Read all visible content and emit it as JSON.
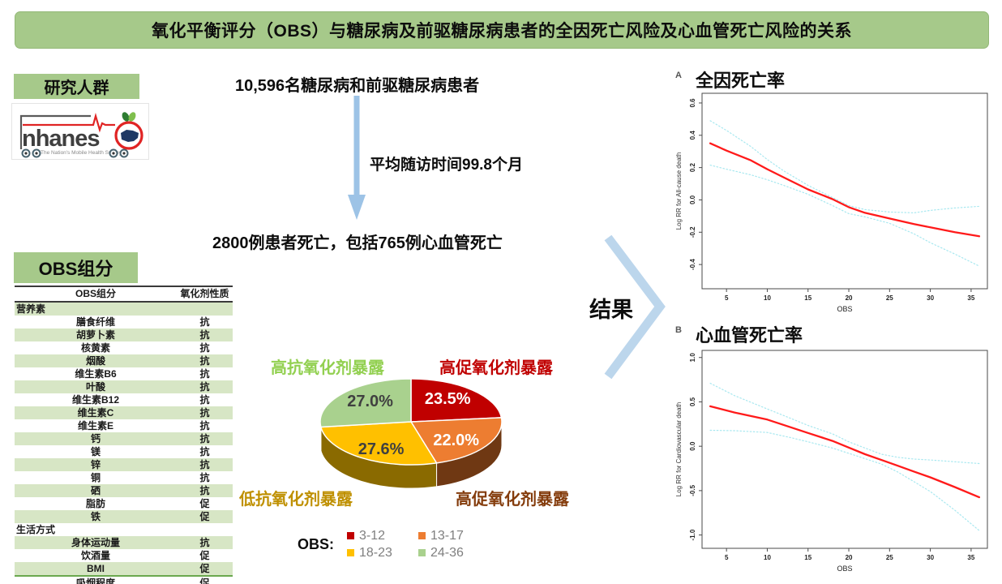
{
  "banner": {
    "title": "氧化平衡评分（OBS）与糖尿病及前驱糖尿病患者的全因死亡风险及心血管死亡风险的关系"
  },
  "colors": {
    "accent_green": "#a6c98a",
    "table_stripe": "#d7e6c5",
    "arrow_blue": "#9dc3e6",
    "chevron_blue": "#bcd6ec",
    "fit_red": "#ff1a1a",
    "ci_cyan": "#a8e8f0"
  },
  "study": {
    "header": "研究人群",
    "logo": {
      "brand": "nhanes",
      "tagline": "The Nation's Mobile Health Survey"
    },
    "population": "10,596名糖尿病和前驱糖尿病患者",
    "follow_up": "平均随访时间99.8个月",
    "outcome": "2800例患者死亡，包括765例心血管死亡",
    "result_label": "结果"
  },
  "obs_table": {
    "header": "OBS组分",
    "columns": [
      "OBS组分",
      "氧化剂性质"
    ],
    "rows": [
      {
        "label": "营养素",
        "value": "",
        "section": true
      },
      {
        "label": "膳食纤维",
        "value": "抗"
      },
      {
        "label": "胡萝卜素",
        "value": "抗"
      },
      {
        "label": "核黄素",
        "value": "抗"
      },
      {
        "label": "烟酸",
        "value": "抗"
      },
      {
        "label": "维生素B6",
        "value": "抗"
      },
      {
        "label": "叶酸",
        "value": "抗"
      },
      {
        "label": "维生素B12",
        "value": "抗"
      },
      {
        "label": "维生素C",
        "value": "抗"
      },
      {
        "label": "维生素E",
        "value": "抗"
      },
      {
        "label": "钙",
        "value": "抗"
      },
      {
        "label": "镁",
        "value": "抗"
      },
      {
        "label": "锌",
        "value": "抗"
      },
      {
        "label": "铜",
        "value": "抗"
      },
      {
        "label": "硒",
        "value": "抗"
      },
      {
        "label": "脂肪",
        "value": "促"
      },
      {
        "label": "铁",
        "value": "促"
      },
      {
        "label": "生活方式",
        "value": "",
        "section": true
      },
      {
        "label": "身体运动量",
        "value": "抗"
      },
      {
        "label": "饮酒量",
        "value": "促"
      },
      {
        "label": "BMI",
        "value": "促"
      },
      {
        "label": "吸烟程度",
        "value": "促"
      }
    ]
  },
  "chart_data": [
    {
      "id": "obs-category-pie",
      "type": "pie",
      "legend_title": "OBS:",
      "slices": [
        {
          "label": "3-12",
          "value": 23.5,
          "color": "#c00000",
          "side_color": "#7c0000",
          "label_color": "#ffffff"
        },
        {
          "label": "13-17",
          "value": 22.0,
          "color": "#ed7d31",
          "side_color": "#6f3813",
          "label_color": "#ffffff"
        },
        {
          "label": "18-23",
          "value": 27.6,
          "color": "#ffc000",
          "side_color": "#8a6a00",
          "label_color": "#404040"
        },
        {
          "label": "24-36",
          "value": 27.0,
          "color": "#a9d18e",
          "side_color": "#6d9b52",
          "label_color": "#404040"
        }
      ],
      "annotations": [
        {
          "text": "高抗氧化剂暴露",
          "color": "#92d050",
          "position": "top-left"
        },
        {
          "text": "高促氧化剂暴露",
          "color": "#c00000",
          "position": "top-right"
        },
        {
          "text": "低抗氧化剂暴露",
          "color": "#bf9000",
          "position": "bottom-left"
        },
        {
          "text": "高促氧化剂暴露",
          "color": "#843c0c",
          "position": "bottom-right"
        }
      ]
    },
    {
      "id": "all-cause-mortality",
      "type": "line",
      "panel": "A",
      "title": "全因死亡率",
      "xlabel": "OBS",
      "ylabel": "Log RR for All-cause death",
      "xlim": [
        2,
        37
      ],
      "ylim": [
        -0.55,
        0.66
      ],
      "xticks": [
        5,
        10,
        15,
        20,
        25,
        30,
        35
      ],
      "yticks": [
        -0.4,
        -0.2,
        0.0,
        0.2,
        0.4,
        0.6
      ],
      "x": [
        3,
        5,
        8,
        10,
        12,
        15,
        18,
        20,
        22,
        25,
        28,
        30,
        33,
        36
      ],
      "series": [
        {
          "name": "estimate",
          "color": "#ff1a1a",
          "style": "solid",
          "values": [
            0.35,
            0.305,
            0.245,
            0.19,
            0.14,
            0.065,
            0.005,
            -0.045,
            -0.08,
            -0.115,
            -0.15,
            -0.17,
            -0.2,
            -0.225
          ]
        },
        {
          "name": "upper-ci",
          "color": "#a8e8f0",
          "style": "dotted",
          "values": [
            0.49,
            0.43,
            0.33,
            0.25,
            0.18,
            0.09,
            0.015,
            -0.035,
            -0.06,
            -0.075,
            -0.08,
            -0.065,
            -0.05,
            -0.04
          ]
        },
        {
          "name": "lower-ci",
          "color": "#a8e8f0",
          "style": "dotted",
          "values": [
            0.215,
            0.19,
            0.155,
            0.125,
            0.09,
            0.035,
            -0.035,
            -0.085,
            -0.105,
            -0.145,
            -0.21,
            -0.265,
            -0.335,
            -0.41
          ]
        }
      ]
    },
    {
      "id": "cardiovascular-mortality",
      "type": "line",
      "panel": "B",
      "title": "心血管死亡率",
      "xlabel": "OBS",
      "ylabel": "Log RR for Cardiovascular death",
      "xlim": [
        2,
        37
      ],
      "ylim": [
        -1.15,
        1.08
      ],
      "xticks": [
        5,
        10,
        15,
        20,
        25,
        30,
        35
      ],
      "yticks": [
        -1.0,
        -0.5,
        0.0,
        0.5,
        1.0
      ],
      "x": [
        3,
        6,
        10,
        13,
        15,
        18,
        20,
        22,
        24,
        26,
        28,
        30,
        33,
        36
      ],
      "series": [
        {
          "name": "estimate",
          "color": "#ff1a1a",
          "style": "solid",
          "values": [
            0.45,
            0.38,
            0.3,
            0.21,
            0.15,
            0.06,
            -0.015,
            -0.09,
            -0.155,
            -0.22,
            -0.285,
            -0.35,
            -0.46,
            -0.575
          ]
        },
        {
          "name": "upper-ci",
          "color": "#a8e8f0",
          "style": "dotted",
          "values": [
            0.71,
            0.57,
            0.42,
            0.31,
            0.235,
            0.14,
            0.05,
            -0.02,
            -0.09,
            -0.125,
            -0.145,
            -0.155,
            -0.175,
            -0.195
          ]
        },
        {
          "name": "lower-ci",
          "color": "#a8e8f0",
          "style": "dotted",
          "values": [
            0.18,
            0.175,
            0.155,
            0.095,
            0.05,
            -0.02,
            -0.08,
            -0.14,
            -0.2,
            -0.29,
            -0.4,
            -0.51,
            -0.72,
            -0.95
          ]
        }
      ]
    }
  ]
}
